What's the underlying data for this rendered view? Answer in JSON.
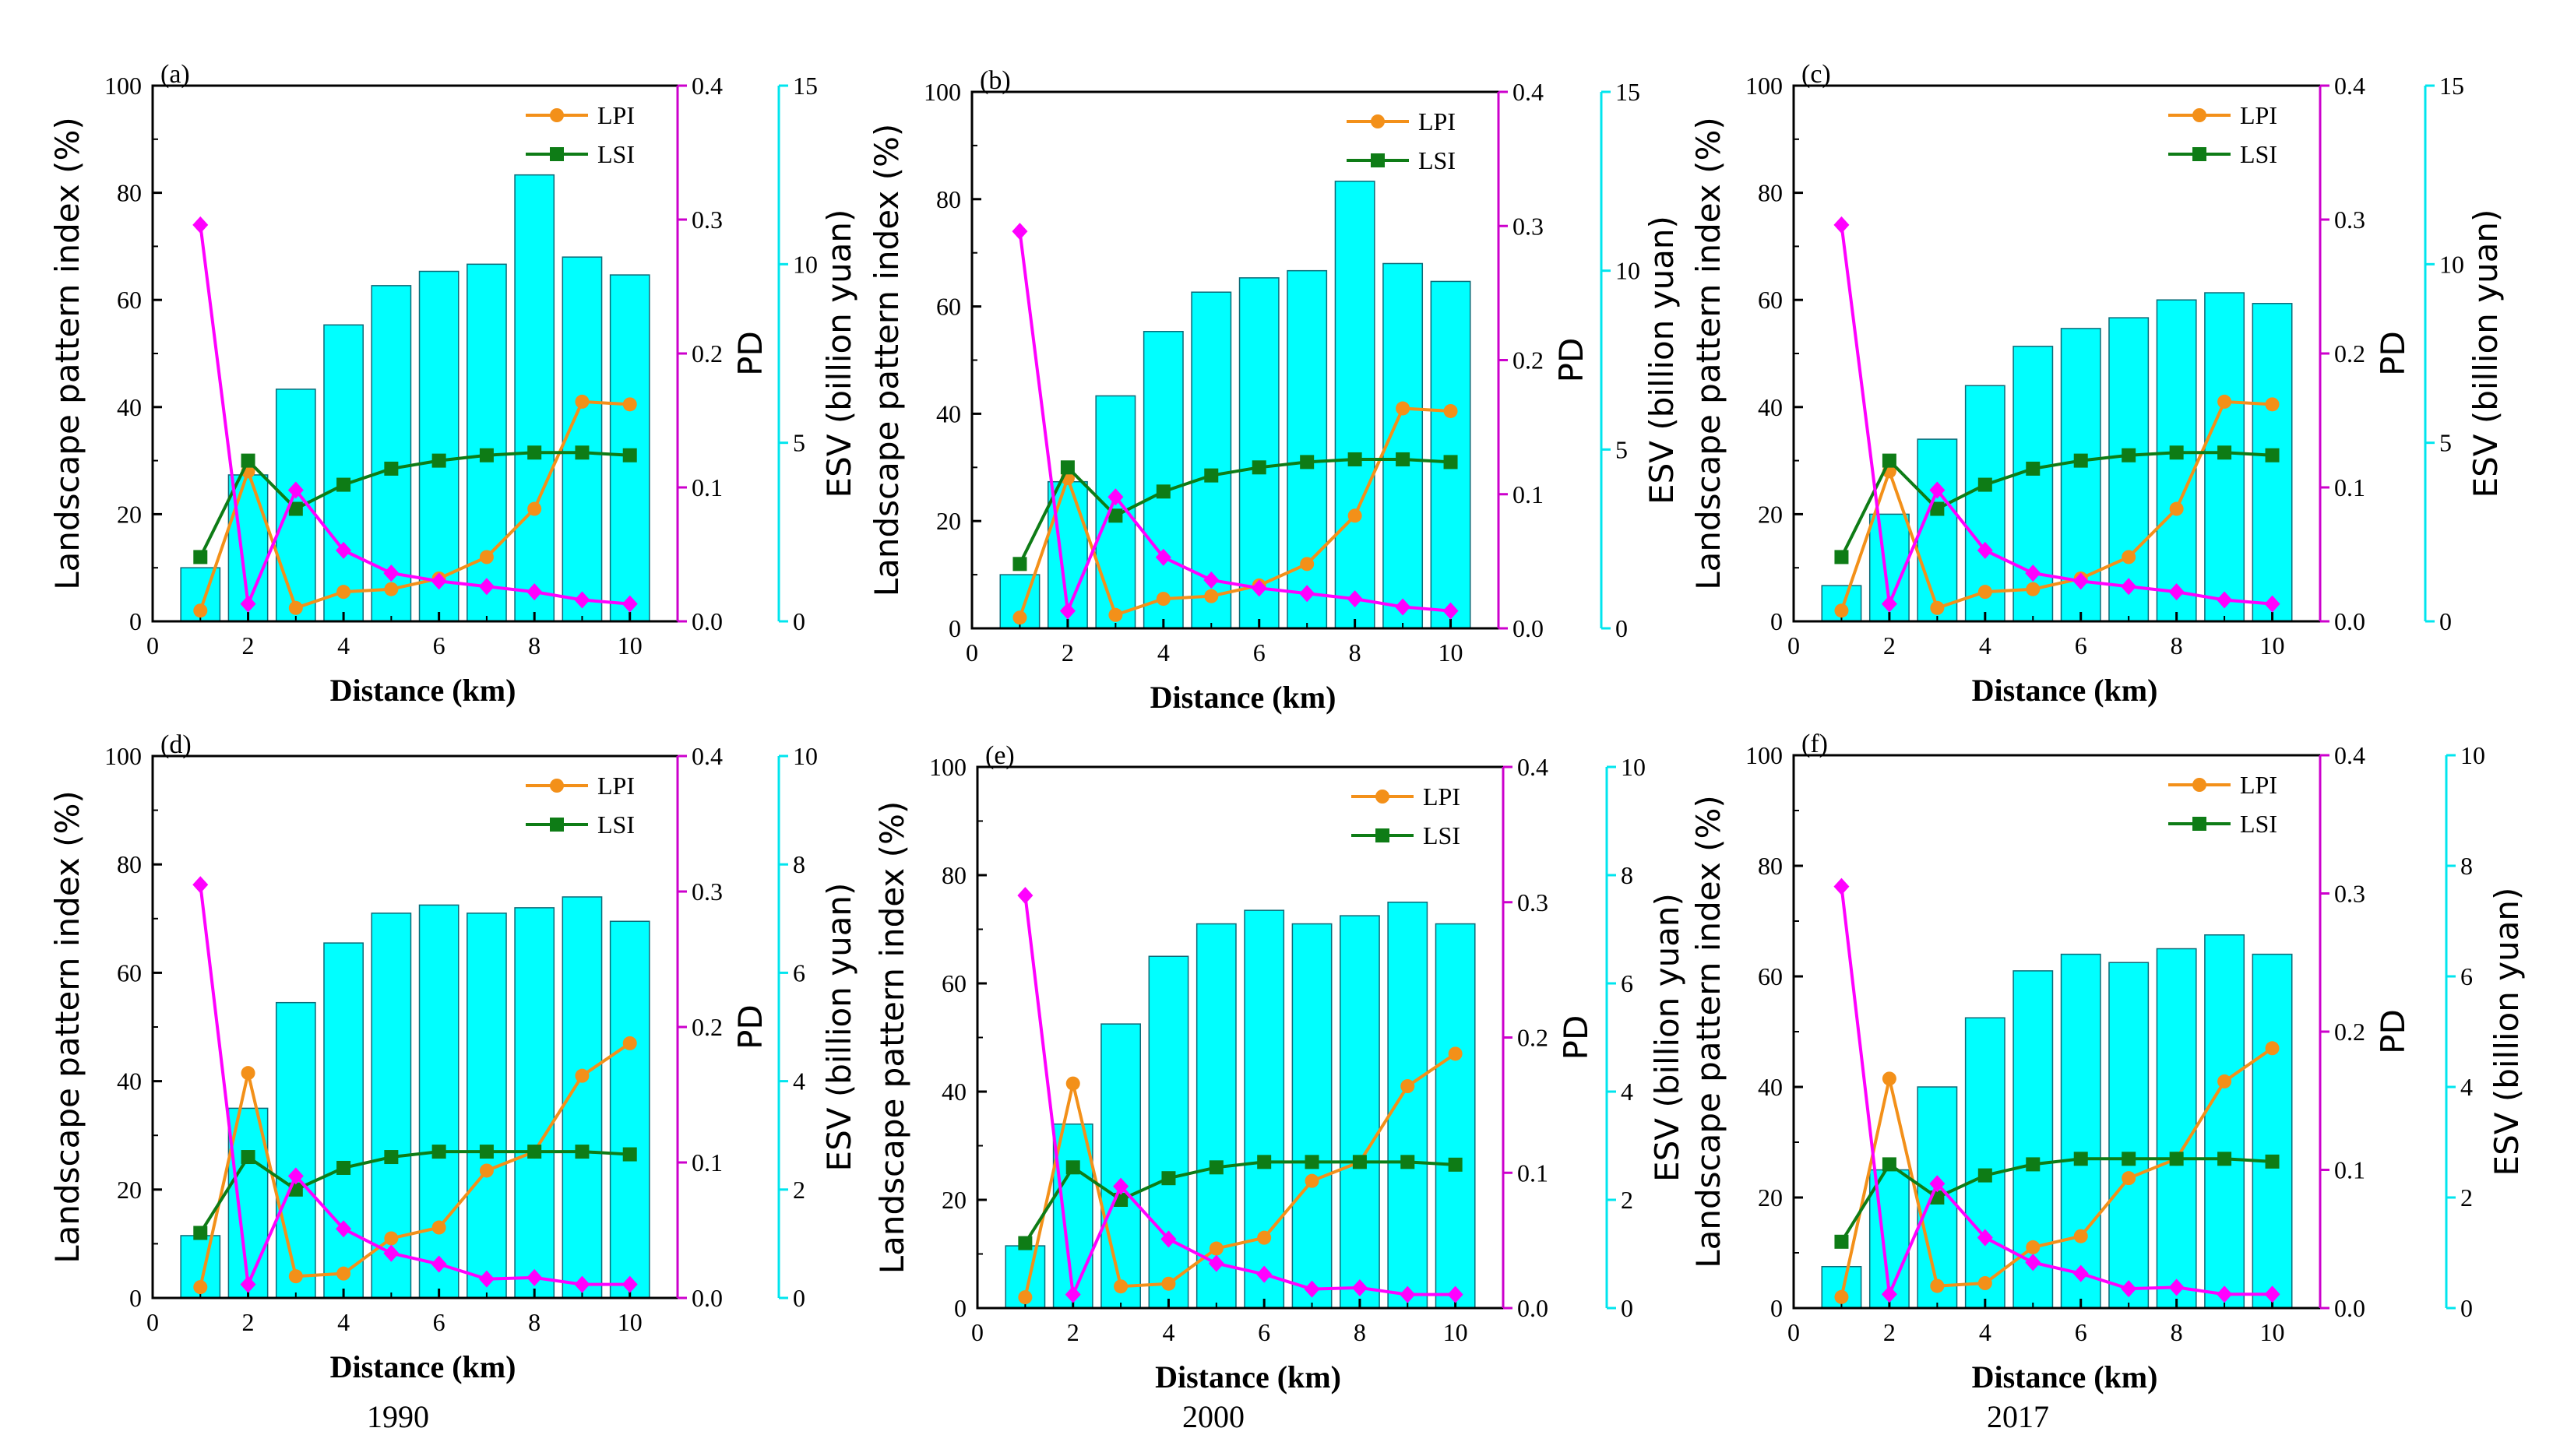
{
  "colors": {
    "bar": "#00ffff",
    "bar_stroke": "#0b6a77",
    "lpi": "#f39019",
    "lsi": "#0e7c16",
    "pd": "#ff00ff",
    "axis": "#000000",
    "esv_axis": "#00e5ee",
    "pd_axis": "#cc00cc"
  },
  "year_labels": [
    "1990",
    "2000",
    "2017"
  ],
  "chart_data": [
    {
      "type": "bar",
      "panel": "(a)",
      "xlabel": "Distance (km)",
      "ylabel_left": "Landscape pattern index (%)",
      "ylabel_pd": "PD",
      "ylabel_esv": "ESV (billion yuan)",
      "x": [
        1,
        2,
        3,
        4,
        5,
        6,
        7,
        8,
        9,
        10
      ],
      "x_ticks": [
        "0",
        "2",
        "4",
        "6",
        "8",
        "10"
      ],
      "left_ticks": [
        "0",
        "20",
        "40",
        "60",
        "80",
        "100"
      ],
      "pd_ticks": [
        "0.0",
        "0.1",
        "0.2",
        "0.3",
        "0.4"
      ],
      "esv_ticks": [
        "0",
        "5",
        "10",
        "15"
      ],
      "xlim": [
        0,
        11
      ],
      "ylim_left": [
        0,
        100
      ],
      "ylim_pd": [
        0,
        0.4
      ],
      "ylim_esv": [
        0,
        15
      ],
      "legend": [
        "LPI",
        "LSI"
      ],
      "series": [
        {
          "name": "ESV",
          "kind": "bar",
          "axis": "esv",
          "values": [
            1.5,
            4.1,
            6.5,
            8.3,
            9.4,
            9.8,
            10.0,
            12.5,
            10.2,
            9.7
          ]
        },
        {
          "name": "LPI",
          "kind": "line",
          "axis": "left",
          "values": [
            2,
            28,
            2.5,
            5.5,
            6,
            8,
            12,
            21,
            41,
            40.5
          ]
        },
        {
          "name": "LSI",
          "kind": "line",
          "axis": "left",
          "values": [
            12,
            30,
            21,
            25.5,
            28.5,
            30,
            31,
            31.5,
            31.5,
            31
          ]
        },
        {
          "name": "PD",
          "kind": "line",
          "axis": "pd",
          "values": [
            0.296,
            0.013,
            0.098,
            0.053,
            0.036,
            0.03,
            0.026,
            0.022,
            0.016,
            0.013
          ]
        }
      ]
    },
    {
      "type": "bar",
      "panel": "(b)",
      "xlabel": "Distance (km)",
      "ylabel_left": "Landscape pattern index (%)",
      "ylabel_pd": "PD",
      "ylabel_esv": "ESV (billion yuan)",
      "x": [
        1,
        2,
        3,
        4,
        5,
        6,
        7,
        8,
        9,
        10
      ],
      "x_ticks": [
        "0",
        "2",
        "4",
        "6",
        "8",
        "10"
      ],
      "left_ticks": [
        "0",
        "20",
        "40",
        "60",
        "80",
        "100"
      ],
      "pd_ticks": [
        "0.0",
        "0.1",
        "0.2",
        "0.3",
        "0.4"
      ],
      "esv_ticks": [
        "0",
        "5",
        "10",
        "15"
      ],
      "xlim": [
        0,
        11
      ],
      "ylim_left": [
        0,
        100
      ],
      "ylim_pd": [
        0,
        0.4
      ],
      "ylim_esv": [
        0,
        15
      ],
      "legend": [
        "LPI",
        "LSI"
      ],
      "series": [
        {
          "name": "ESV",
          "kind": "bar",
          "axis": "esv",
          "values": [
            1.5,
            4.1,
            6.5,
            8.3,
            9.4,
            9.8,
            10.0,
            12.5,
            10.2,
            9.7
          ]
        },
        {
          "name": "LPI",
          "kind": "line",
          "axis": "left",
          "values": [
            2,
            28,
            2.5,
            5.5,
            6,
            8,
            12,
            21,
            41,
            40.5
          ]
        },
        {
          "name": "LSI",
          "kind": "line",
          "axis": "left",
          "values": [
            12,
            30,
            21,
            25.5,
            28.5,
            30,
            31,
            31.5,
            31.5,
            31
          ]
        },
        {
          "name": "PD",
          "kind": "line",
          "axis": "pd",
          "values": [
            0.296,
            0.013,
            0.098,
            0.053,
            0.036,
            0.03,
            0.026,
            0.022,
            0.016,
            0.013
          ]
        }
      ]
    },
    {
      "type": "bar",
      "panel": "(c)",
      "xlabel": "Distance (km)",
      "ylabel_left": "Landscape pattern index (%)",
      "ylabel_pd": "PD",
      "ylabel_esv": "ESV (billion yuan)",
      "x": [
        1,
        2,
        3,
        4,
        5,
        6,
        7,
        8,
        9,
        10
      ],
      "x_ticks": [
        "0",
        "2",
        "4",
        "6",
        "8",
        "10"
      ],
      "left_ticks": [
        "0",
        "20",
        "40",
        "60",
        "80",
        "100"
      ],
      "pd_ticks": [
        "0.0",
        "0.1",
        "0.2",
        "0.3",
        "0.4"
      ],
      "esv_ticks": [
        "0",
        "5",
        "10",
        "15"
      ],
      "xlim": [
        0,
        11
      ],
      "ylim_left": [
        0,
        100
      ],
      "ylim_pd": [
        0,
        0.4
      ],
      "ylim_esv": [
        0,
        15
      ],
      "legend": [
        "LPI",
        "LSI"
      ],
      "series": [
        {
          "name": "ESV",
          "kind": "bar",
          "axis": "esv",
          "values": [
            1.0,
            3.0,
            5.1,
            6.6,
            7.7,
            8.2,
            8.5,
            9.0,
            9.2,
            8.9
          ]
        },
        {
          "name": "LPI",
          "kind": "line",
          "axis": "left",
          "values": [
            2,
            28,
            2.5,
            5.5,
            6,
            8,
            12,
            21,
            41,
            40.5
          ]
        },
        {
          "name": "LSI",
          "kind": "line",
          "axis": "left",
          "values": [
            12,
            30,
            21,
            25.5,
            28.5,
            30,
            31,
            31.5,
            31.5,
            31
          ]
        },
        {
          "name": "PD",
          "kind": "line",
          "axis": "pd",
          "values": [
            0.296,
            0.013,
            0.098,
            0.053,
            0.036,
            0.03,
            0.026,
            0.022,
            0.016,
            0.013
          ]
        }
      ]
    },
    {
      "type": "bar",
      "panel": "(d)",
      "xlabel": "Distance (km)",
      "ylabel_left": "Landscape pattern index (%)",
      "ylabel_pd": "PD",
      "ylabel_esv": "ESV (billion yuan)",
      "x": [
        1,
        2,
        3,
        4,
        5,
        6,
        7,
        8,
        9,
        10
      ],
      "x_ticks": [
        "0",
        "2",
        "4",
        "6",
        "8",
        "10"
      ],
      "left_ticks": [
        "0",
        "20",
        "40",
        "60",
        "80",
        "100"
      ],
      "pd_ticks": [
        "0.0",
        "0.1",
        "0.2",
        "0.3",
        "0.4"
      ],
      "esv_ticks": [
        "0",
        "2",
        "4",
        "6",
        "8",
        "10"
      ],
      "xlim": [
        0,
        11
      ],
      "ylim_left": [
        0,
        100
      ],
      "ylim_pd": [
        0,
        0.4
      ],
      "ylim_esv": [
        0,
        10
      ],
      "legend": [
        "LPI",
        "LSI"
      ],
      "series": [
        {
          "name": "ESV",
          "kind": "bar",
          "axis": "esv",
          "values": [
            1.15,
            3.5,
            5.45,
            6.55,
            7.1,
            7.25,
            7.1,
            7.2,
            7.4,
            6.95
          ]
        },
        {
          "name": "LPI",
          "kind": "line",
          "axis": "left",
          "values": [
            2,
            41.5,
            4,
            4.5,
            11,
            13,
            23.5,
            27,
            41,
            47
          ]
        },
        {
          "name": "LSI",
          "kind": "line",
          "axis": "left",
          "values": [
            12,
            26,
            20,
            24,
            26,
            27,
            27,
            27,
            27,
            26.5
          ]
        },
        {
          "name": "PD",
          "kind": "line",
          "axis": "pd",
          "values": [
            0.305,
            0.01,
            0.09,
            0.051,
            0.033,
            0.025,
            0.014,
            0.015,
            0.01,
            0.01
          ]
        }
      ]
    },
    {
      "type": "bar",
      "panel": "(e)",
      "xlabel": "Distance (km)",
      "ylabel_left": "Landscape pattern index (%)",
      "ylabel_pd": "PD",
      "ylabel_esv": "ESV (billion yuan)",
      "x": [
        1,
        2,
        3,
        4,
        5,
        6,
        7,
        8,
        9,
        10
      ],
      "x_ticks": [
        "0",
        "2",
        "4",
        "6",
        "8",
        "10"
      ],
      "left_ticks": [
        "0",
        "20",
        "40",
        "60",
        "80",
        "100"
      ],
      "pd_ticks": [
        "0.0",
        "0.1",
        "0.2",
        "0.3",
        "0.4"
      ],
      "esv_ticks": [
        "0",
        "2",
        "4",
        "6",
        "8",
        "10"
      ],
      "xlim": [
        0,
        11
      ],
      "ylim_left": [
        0,
        100
      ],
      "ylim_pd": [
        0,
        0.4
      ],
      "ylim_esv": [
        0,
        10
      ],
      "legend": [
        "LPI",
        "LSI"
      ],
      "series": [
        {
          "name": "ESV",
          "kind": "bar",
          "axis": "esv",
          "values": [
            1.15,
            3.4,
            5.25,
            6.5,
            7.1,
            7.35,
            7.1,
            7.25,
            7.5,
            7.1
          ]
        },
        {
          "name": "LPI",
          "kind": "line",
          "axis": "left",
          "values": [
            2,
            41.5,
            4,
            4.5,
            11,
            13,
            23.5,
            27,
            41,
            47
          ]
        },
        {
          "name": "LSI",
          "kind": "line",
          "axis": "left",
          "values": [
            12,
            26,
            20,
            24,
            26,
            27,
            27,
            27,
            27,
            26.5
          ]
        },
        {
          "name": "PD",
          "kind": "line",
          "axis": "pd",
          "values": [
            0.305,
            0.01,
            0.09,
            0.051,
            0.033,
            0.025,
            0.014,
            0.015,
            0.01,
            0.01
          ]
        }
      ]
    },
    {
      "type": "bar",
      "panel": "(f)",
      "xlabel": "Distance (km)",
      "ylabel_left": "Landscape pattern index (%)",
      "ylabel_pd": "PD",
      "ylabel_esv": "ESV (billion yuan)",
      "x": [
        1,
        2,
        3,
        4,
        5,
        6,
        7,
        8,
        9,
        10
      ],
      "x_ticks": [
        "0",
        "2",
        "4",
        "6",
        "8",
        "10"
      ],
      "left_ticks": [
        "0",
        "20",
        "40",
        "60",
        "80",
        "100"
      ],
      "pd_ticks": [
        "0.0",
        "0.1",
        "0.2",
        "0.3",
        "0.4"
      ],
      "esv_ticks": [
        "0",
        "2",
        "4",
        "6",
        "8",
        "10"
      ],
      "xlim": [
        0,
        11
      ],
      "ylim_left": [
        0,
        100
      ],
      "ylim_pd": [
        0,
        0.4
      ],
      "ylim_esv": [
        0,
        10
      ],
      "legend": [
        "LPI",
        "LSI"
      ],
      "series": [
        {
          "name": "ESV",
          "kind": "bar",
          "axis": "esv",
          "values": [
            0.75,
            2.5,
            4.0,
            5.25,
            6.1,
            6.4,
            6.25,
            6.5,
            6.75,
            6.4
          ]
        },
        {
          "name": "LPI",
          "kind": "line",
          "axis": "left",
          "values": [
            2,
            41.5,
            4,
            4.5,
            11,
            13,
            23.5,
            27,
            41,
            47
          ]
        },
        {
          "name": "LSI",
          "kind": "line",
          "axis": "left",
          "values": [
            12,
            26,
            20,
            24,
            26,
            27,
            27,
            27,
            27,
            26.5
          ]
        },
        {
          "name": "PD",
          "kind": "line",
          "axis": "pd",
          "values": [
            0.305,
            0.01,
            0.09,
            0.051,
            0.033,
            0.025,
            0.014,
            0.015,
            0.01,
            0.01
          ]
        }
      ]
    }
  ]
}
